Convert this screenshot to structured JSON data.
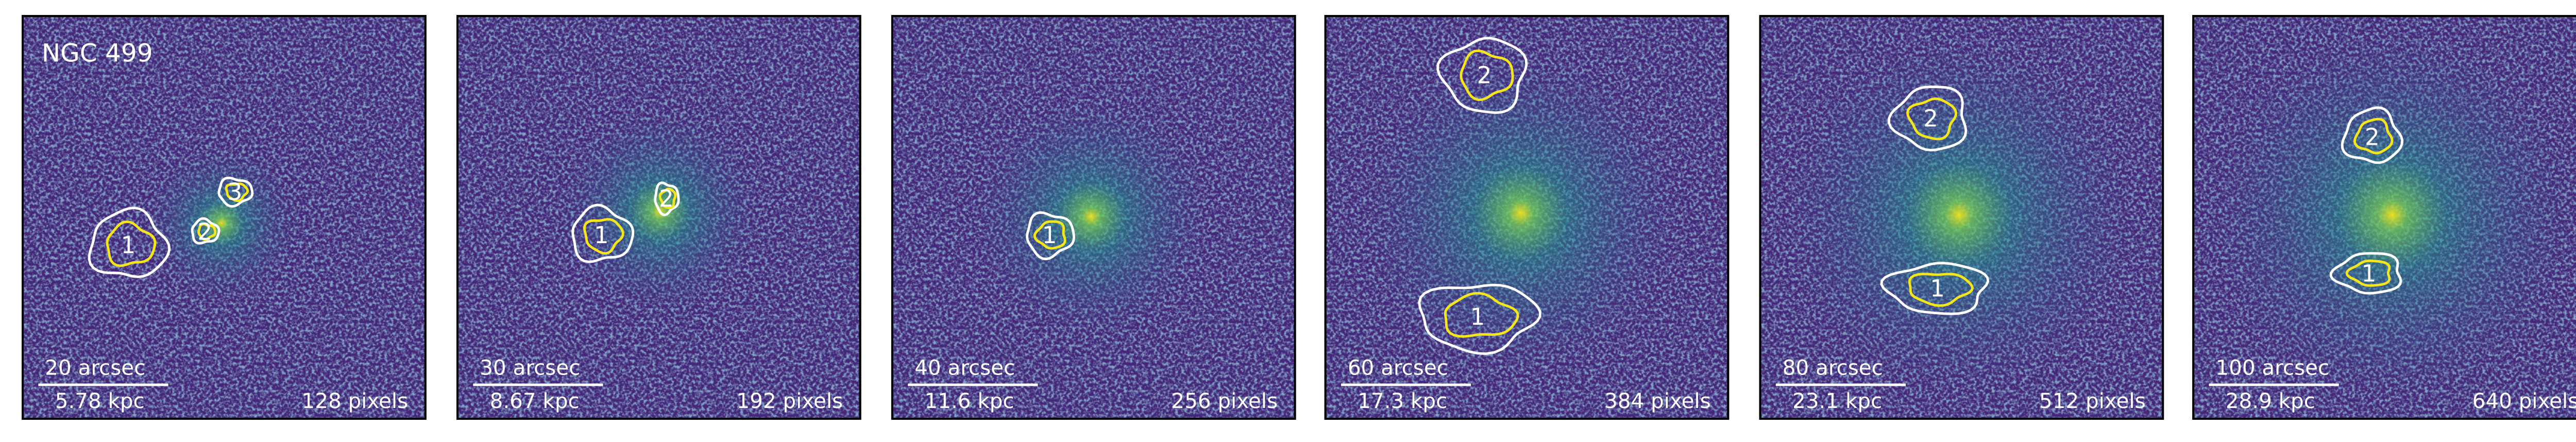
{
  "panels": [
    {
      "title": "NGC 499",
      "scale": "20 arcsec",
      "kpc": "5.78 kpc",
      "pixels": "128 pixels",
      "regions": [
        "1",
        "2",
        "3"
      ]
    },
    {
      "scale": "30 arcsec",
      "kpc": "8.67 kpc",
      "pixels": "192 pixels",
      "regions": [
        "1",
        "2"
      ]
    },
    {
      "scale": "40 arcsec",
      "kpc": "11.6 kpc",
      "pixels": "256 pixels",
      "regions": [
        "1"
      ]
    },
    {
      "scale": "60 arcsec",
      "kpc": "17.3 kpc",
      "pixels": "384 pixels",
      "regions": [
        "1",
        "2"
      ]
    },
    {
      "scale": "80 arcsec",
      "kpc": "23.1 kpc",
      "pixels": "512 pixels",
      "regions": [
        "1",
        "2"
      ]
    },
    {
      "scale": "100 arcsec",
      "kpc": "28.9 kpc",
      "pixels": "640 pixels",
      "regions": [
        "1",
        "2"
      ]
    }
  ]
}
